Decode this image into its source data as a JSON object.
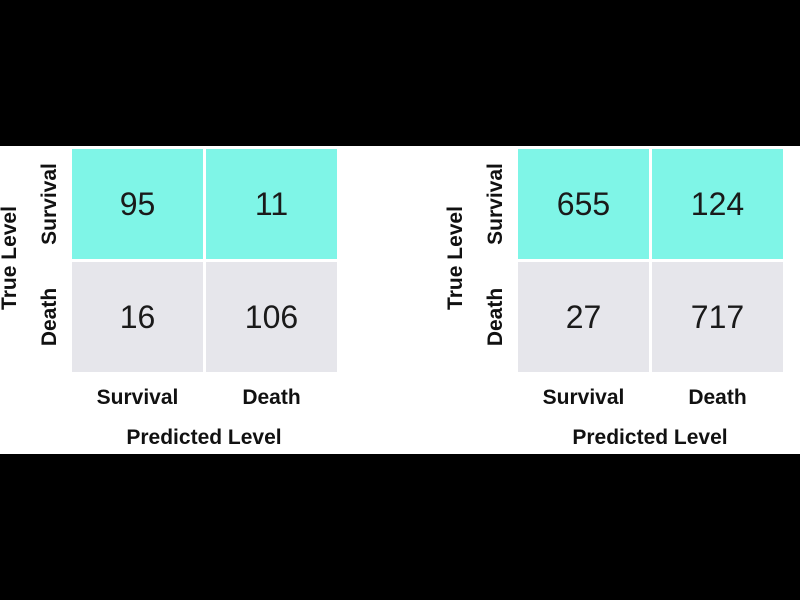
{
  "colors": {
    "diagonal_cell": "#7ff5e7",
    "off_cell": "#e6e6eb",
    "background": "#ffffff",
    "frame": "#000000"
  },
  "chart_data": [
    {
      "type": "heatmap",
      "y_title": "True Level",
      "x_title": "Predicted Level",
      "row_labels": [
        "Survival",
        "Death"
      ],
      "col_labels": [
        "Survival",
        "Death"
      ],
      "values": [
        [
          95,
          11
        ],
        [
          16,
          106
        ]
      ],
      "highlight_row": 0
    },
    {
      "type": "heatmap",
      "y_title": "True Level",
      "x_title": "Predicted Level",
      "row_labels": [
        "Survival",
        "Death"
      ],
      "col_labels": [
        "Survival",
        "Death"
      ],
      "values": [
        [
          655,
          124
        ],
        [
          27,
          717
        ]
      ],
      "highlight_row": 0
    }
  ]
}
